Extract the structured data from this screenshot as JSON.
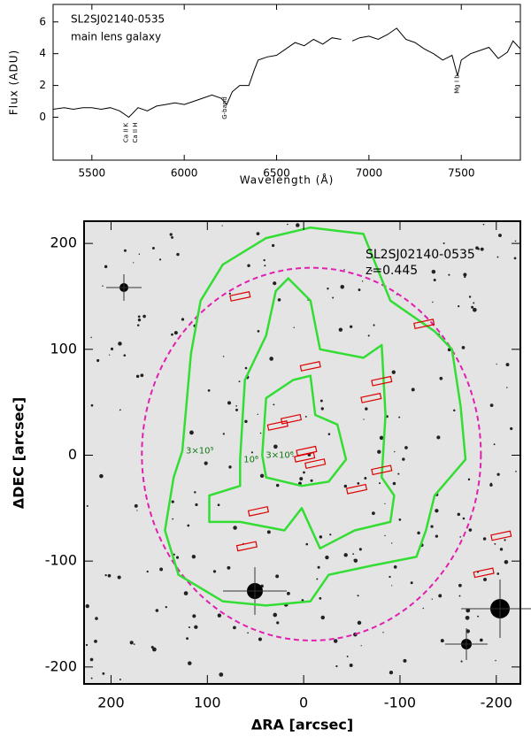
{
  "chart_data": [
    {
      "type": "line",
      "title": "SL2SJ02140-0535",
      "subtitle": "main lens galaxy",
      "xlabel": "Wavelength (Å)",
      "ylabel": "Flux (ADU)",
      "x": [
        5290,
        5350,
        5400,
        5450,
        5500,
        5550,
        5600,
        5650,
        5700,
        5750,
        5800,
        5850,
        5900,
        5950,
        6000,
        6050,
        6100,
        6150,
        6200,
        6230,
        6260,
        6300,
        6350,
        6380,
        6400,
        6450,
        6500,
        6550,
        6600,
        6650,
        6700,
        6750,
        6800,
        6850,
        6880,
        6910,
        6950,
        7000,
        7050,
        7100,
        7150,
        7200,
        7250,
        7300,
        7350,
        7400,
        7450,
        7480,
        7500,
        7550,
        7600,
        7650,
        7700,
        7750,
        7780,
        7820
      ],
      "series": [
        {
          "color": "#000000",
          "values": [
            0.5,
            0.6,
            0.5,
            0.6,
            0.6,
            0.5,
            0.6,
            0.4,
            0.0,
            0.6,
            0.4,
            0.7,
            0.8,
            0.9,
            0.8,
            1.0,
            1.2,
            1.4,
            1.2,
            0.8,
            1.6,
            2.0,
            2.0,
            3.0,
            3.6,
            3.8,
            3.9,
            4.3,
            4.7,
            4.5,
            4.9,
            4.6,
            5.0,
            4.9,
            null,
            4.8,
            5.0,
            5.1,
            4.9,
            5.2,
            5.6,
            4.9,
            4.7,
            4.3,
            4.0,
            3.6,
            3.9,
            2.6,
            3.6,
            4.0,
            4.2,
            4.4,
            3.7,
            4.1,
            4.8,
            4.3
          ]
        }
      ],
      "line_labels": [
        {
          "label": "Ca II K",
          "x": 5685
        },
        {
          "label": "Ca II H",
          "x": 5735
        },
        {
          "label": "G-band",
          "x": 6219
        },
        {
          "label": "Mg I b",
          "x": 7478
        }
      ],
      "xlim": [
        5290,
        7820
      ],
      "ylim": [
        -2.7,
        7.1
      ],
      "xticks": [
        5500,
        6000,
        6500,
        7000,
        7500
      ],
      "yticks": [
        0,
        2,
        4,
        6
      ]
    },
    {
      "type": "scatter",
      "title": "SL2SJ02140-0535",
      "subtitle": "z=0.445",
      "xlabel": "ΔRA [arcsec]",
      "ylabel": "ΔDEC [arcsec]",
      "xlim": [
        228,
        -225
      ],
      "ylim": [
        -216,
        221
      ],
      "xticks": [
        200,
        100,
        0,
        -100,
        -200
      ],
      "yticks": [
        200,
        100,
        0,
        -100,
        -200
      ],
      "series": [
        {
          "color": "#dd0000",
          "x": [
            66,
            -125,
            -7,
            -81,
            -70,
            13,
            27,
            -3,
            -1,
            -12,
            -81,
            -55,
            47,
            59,
            -205,
            -187
          ],
          "values": [
            150,
            124,
            84,
            70,
            54,
            34,
            28,
            4,
            -2,
            -8,
            -14,
            -32,
            -53,
            -86,
            -76,
            -111
          ]
        }
      ],
      "contours": [
        {
          "label": "3×10⁵",
          "color": "#33dd33",
          "x": [
            126,
            117,
            107,
            84,
            39,
            -7,
            -62,
            -90,
            -136,
            -154,
            -163,
            -168,
            -136,
            -127,
            -117,
            -72,
            -26,
            -7,
            39,
            84,
            130,
            144,
            135
          ],
          "y": [
            4,
            96,
            146,
            180,
            205,
            215,
            209,
            146,
            117,
            100,
            46,
            -4,
            -38,
            -71,
            -96,
            -104,
            -113,
            -138,
            -142,
            -138,
            -113,
            -71,
            -21
          ]
        },
        {
          "label": "10⁶",
          "color": "#33dd33",
          "x": [
            66,
            61,
            39,
            29,
            16,
            -7,
            -17,
            -62,
            -81,
            -85,
            -81,
            -94,
            -90,
            -53,
            -17,
            2,
            20,
            66,
            98,
            98,
            66
          ],
          "y": [
            -4,
            71,
            113,
            155,
            167,
            146,
            100,
            92,
            104,
            38,
            -21,
            -38,
            -63,
            -71,
            -88,
            -50,
            -71,
            -63,
            -63,
            -38,
            -29
          ]
        },
        {
          "label": "3×10⁶",
          "color": "#33dd33",
          "x": [
            43,
            39,
            11,
            -7,
            -12,
            -35,
            -44,
            -26,
            2,
            39
          ],
          "y": [
            0,
            54,
            71,
            75,
            38,
            29,
            -4,
            -25,
            -29,
            -21
          ]
        }
      ],
      "circle": {
        "center": [
          -8,
          1
        ],
        "radius": 176,
        "color": "#e020b0"
      }
    }
  ]
}
